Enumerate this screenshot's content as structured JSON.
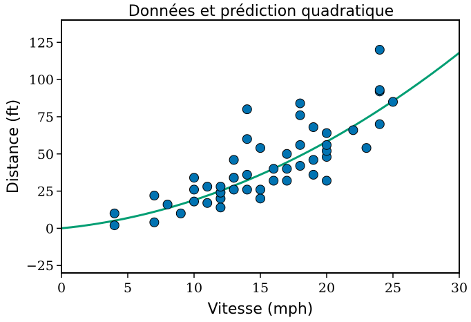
{
  "chart_data": {
    "type": "scatter",
    "title": "Données et prédiction quadratique",
    "xlabel": "Vitesse (mph)",
    "ylabel": "Distance (ft)",
    "xlim": [
      0,
      30
    ],
    "ylim": [
      -30,
      140
    ],
    "xticks": [
      0,
      5,
      10,
      15,
      20,
      25,
      30
    ],
    "yticks": [
      -25,
      0,
      25,
      50,
      75,
      100,
      125
    ],
    "xtick_labels": [
      "0",
      "5",
      "10",
      "15",
      "20",
      "25",
      "30"
    ],
    "ytick_labels": [
      "−25",
      "0",
      "25",
      "50",
      "75",
      "100",
      "125"
    ],
    "grid": false,
    "marker_color": "#0173b2",
    "curve_color": "#029e73",
    "points": [
      [
        4,
        2
      ],
      [
        4,
        10
      ],
      [
        7,
        4
      ],
      [
        7,
        22
      ],
      [
        8,
        16
      ],
      [
        9,
        10
      ],
      [
        10,
        18
      ],
      [
        10,
        26
      ],
      [
        10,
        34
      ],
      [
        11,
        17
      ],
      [
        11,
        28
      ],
      [
        12,
        14
      ],
      [
        12,
        20
      ],
      [
        12,
        24
      ],
      [
        12,
        28
      ],
      [
        13,
        26
      ],
      [
        13,
        34
      ],
      [
        13,
        34
      ],
      [
        13,
        46
      ],
      [
        14,
        26
      ],
      [
        14,
        36
      ],
      [
        14,
        60
      ],
      [
        14,
        80
      ],
      [
        15,
        20
      ],
      [
        15,
        26
      ],
      [
        15,
        54
      ],
      [
        16,
        32
      ],
      [
        16,
        40
      ],
      [
        17,
        32
      ],
      [
        17,
        40
      ],
      [
        17,
        50
      ],
      [
        18,
        42
      ],
      [
        18,
        56
      ],
      [
        18,
        76
      ],
      [
        18,
        84
      ],
      [
        19,
        36
      ],
      [
        19,
        46
      ],
      [
        19,
        68
      ],
      [
        20,
        32
      ],
      [
        20,
        48
      ],
      [
        20,
        52
      ],
      [
        20,
        56
      ],
      [
        20,
        64
      ],
      [
        22,
        66
      ],
      [
        23,
        54
      ],
      [
        24,
        70
      ],
      [
        24,
        92
      ],
      [
        24,
        93
      ],
      [
        24,
        120
      ],
      [
        25,
        85
      ]
    ],
    "fit": {
      "type": "quadratic",
      "coefficients": [
        0.0,
        0.878,
        0.1018
      ]
    }
  }
}
